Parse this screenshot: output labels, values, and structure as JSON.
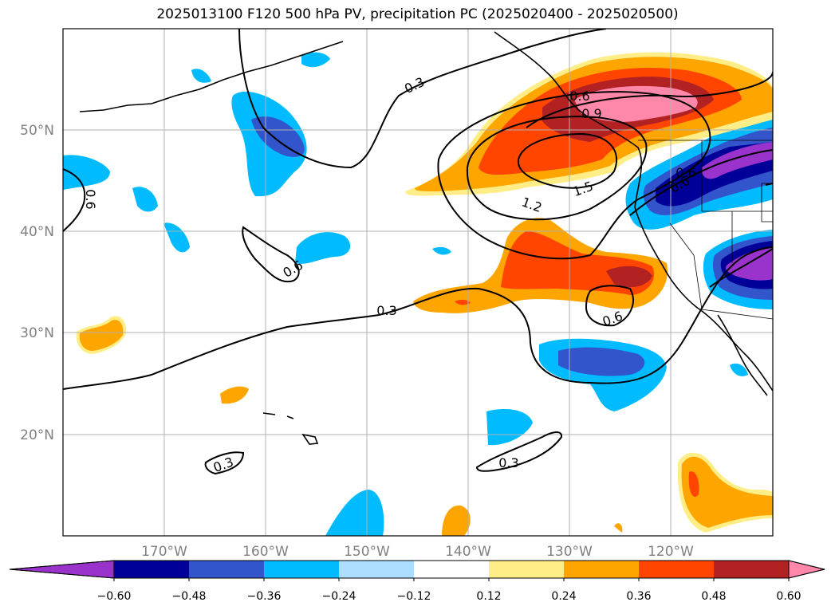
{
  "title": "2025013100 F120 500 hPa PV, precipitation PC (2025020400 - 2025020500)",
  "map": {
    "lon_range": [
      -180,
      -110
    ],
    "lat_range": [
      10,
      60
    ],
    "lat_labels": [
      "50°N",
      "40°N",
      "30°N",
      "20°N"
    ],
    "lon_labels": [
      "170°W",
      "160°W",
      "150°W",
      "140°W",
      "130°W",
      "120°W"
    ],
    "contour_labels": [
      "0.3",
      "0.6",
      "0.6",
      "0.3",
      "1.2",
      "1.5",
      "0.6",
      "0.6",
      "0.3",
      "0.3",
      "0.6",
      "0.9",
      "0.6"
    ]
  },
  "colorbar": {
    "ticks": [
      "−0.60",
      "−0.48",
      "−0.36",
      "−0.24",
      "−0.12",
      "0.12",
      "0.24",
      "0.36",
      "0.48",
      "0.60"
    ],
    "colors": [
      "#9933cc",
      "#000099",
      "#3355cc",
      "#00bbff",
      "#aaddff",
      "#ffffff",
      "#ffee88",
      "#ffa500",
      "#ff4500",
      "#b22222",
      "#ff88aa"
    ]
  }
}
